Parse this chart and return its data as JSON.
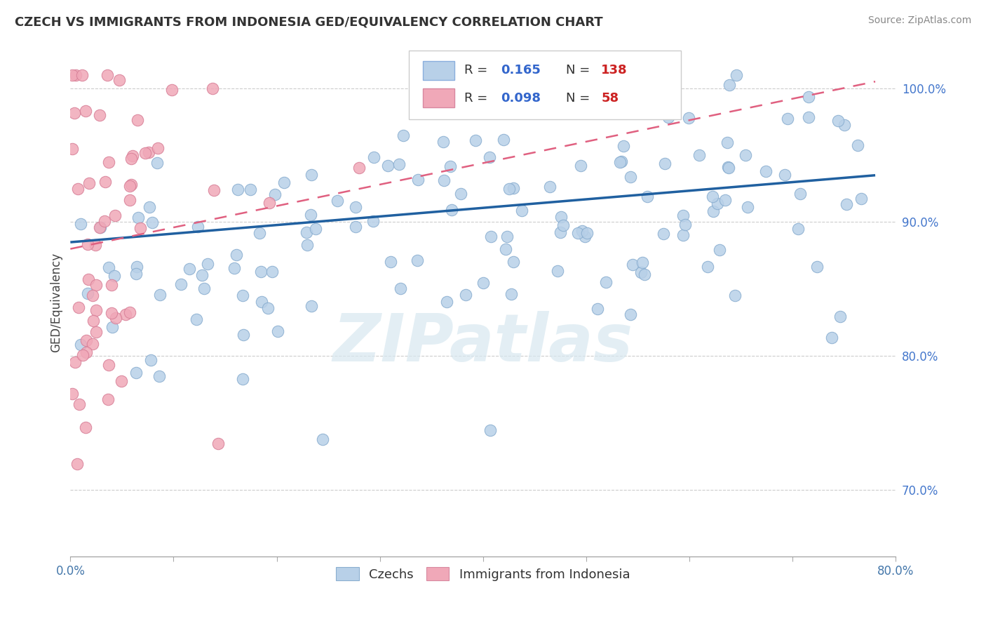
{
  "title": "CZECH VS IMMIGRANTS FROM INDONESIA GED/EQUIVALENCY CORRELATION CHART",
  "source": "Source: ZipAtlas.com",
  "xlim": [
    0.0,
    80.0
  ],
  "ylim": [
    65.0,
    103.0
  ],
  "ylabel": "GED/Equivalency",
  "r_czech": 0.165,
  "n_czech": 138,
  "r_indo": 0.098,
  "n_indo": 58,
  "blue_color": "#b8d0e8",
  "pink_color": "#f0a8b8",
  "blue_line_color": "#2060a0",
  "pink_line_color": "#e06080",
  "ytick_values": [
    70.0,
    80.0,
    90.0,
    100.0
  ],
  "blue_line_x0": 0.0,
  "blue_line_y0": 88.5,
  "blue_line_x1": 78.0,
  "blue_line_y1": 93.5,
  "pink_line_x0": 0.0,
  "pink_line_y0": 88.0,
  "pink_line_x1": 78.0,
  "pink_line_y1": 100.5,
  "title_fontsize": 13,
  "source_fontsize": 10,
  "tick_fontsize": 12,
  "ylabel_fontsize": 12,
  "legend_fontsize": 13
}
